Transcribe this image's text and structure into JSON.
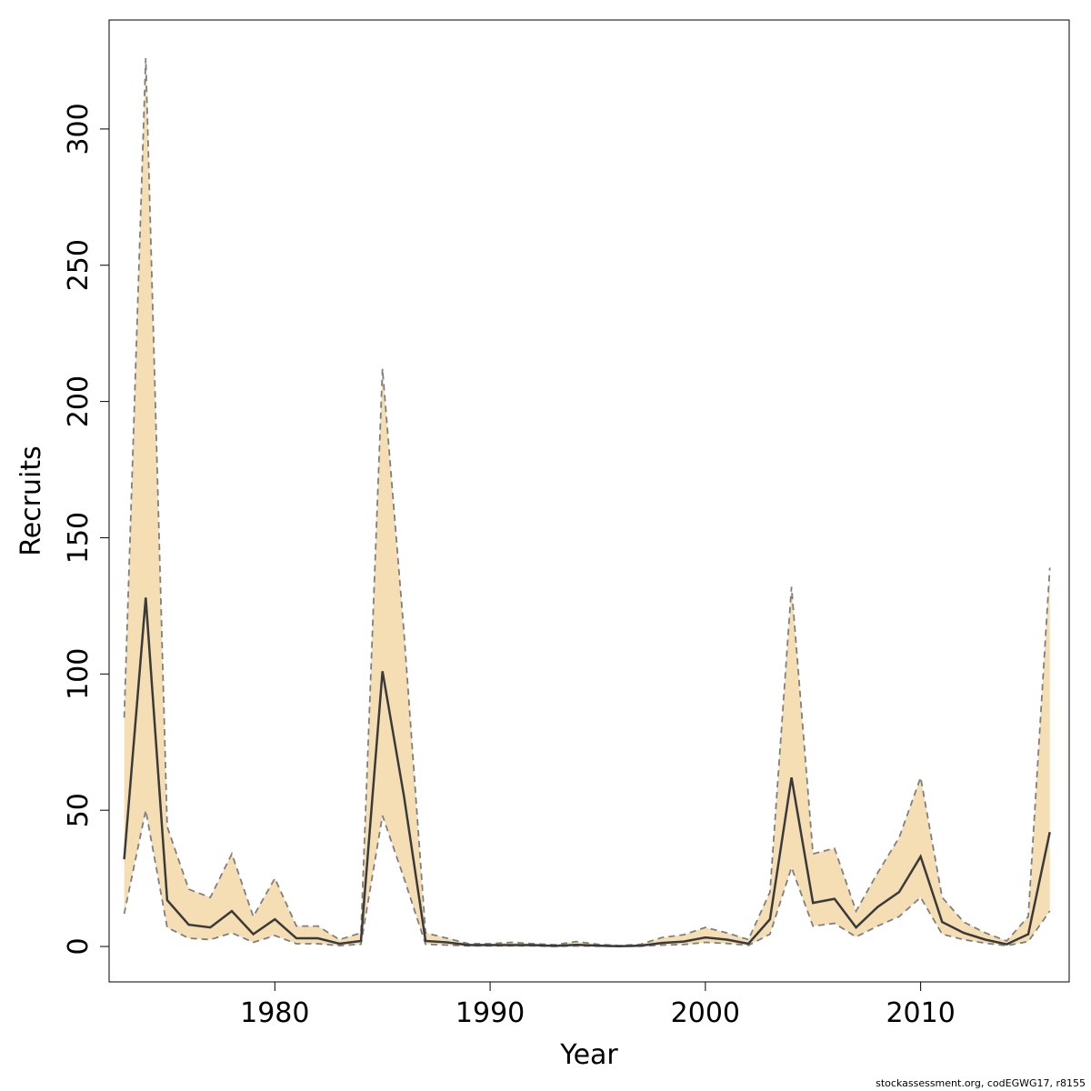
{
  "chart_data": {
    "type": "line",
    "xlabel": "Year",
    "ylabel": "Recruits",
    "xlim": [
      1972.3,
      2016.9
    ],
    "ylim": [
      -13,
      340
    ],
    "x_ticks": [
      1980,
      1990,
      2000,
      2010
    ],
    "x_tick_labels": [
      "1980",
      "1990",
      "2000",
      "2010"
    ],
    "y_ticks": [
      0,
      50,
      100,
      150,
      200,
      250,
      300
    ],
    "y_tick_labels": [
      "0",
      "50",
      "100",
      "150",
      "200",
      "250",
      "300"
    ],
    "grid": false,
    "colors": {
      "band": "#f5deb3",
      "line": "#3a3a3a",
      "bounds": "#7f7f7f"
    },
    "x": [
      1973,
      1974,
      1975,
      1976,
      1977,
      1978,
      1979,
      1980,
      1981,
      1982,
      1983,
      1984,
      1985,
      1986,
      1987,
      1988,
      1989,
      1990,
      1991,
      1992,
      1993,
      1994,
      1995,
      1996,
      1997,
      1998,
      1999,
      2000,
      2001,
      2002,
      2003,
      2004,
      2005,
      2006,
      2007,
      2008,
      2009,
      2010,
      2011,
      2012,
      2013,
      2014,
      2015,
      2016
    ],
    "series": [
      {
        "role": "estimate",
        "values": [
          32,
          128,
          17,
          8,
          7,
          13,
          4.5,
          10,
          3,
          3,
          1,
          2,
          101,
          55,
          2,
          1.5,
          0.5,
          0.5,
          0.5,
          0.5,
          0.2,
          0.6,
          0.3,
          0.1,
          0.3,
          1.3,
          1.8,
          3.3,
          2.5,
          1,
          10,
          62,
          16,
          17.5,
          7,
          14.5,
          20,
          33,
          9,
          5,
          2.5,
          0.8,
          4.5,
          42
        ]
      },
      {
        "role": "upper",
        "values": [
          84,
          326,
          44,
          21,
          18,
          34,
          11,
          25,
          7.5,
          7.5,
          2.5,
          5,
          212,
          115,
          5,
          3,
          1,
          1,
          1.5,
          1,
          0.6,
          1.8,
          0.8,
          0.3,
          0.8,
          3.3,
          4.3,
          7,
          5,
          2.5,
          20,
          132,
          34,
          36,
          13,
          27,
          40,
          62,
          18,
          9,
          5,
          2,
          11,
          139
        ]
      },
      {
        "role": "lower",
        "values": [
          12,
          50,
          7,
          3,
          2.5,
          5,
          1.5,
          4,
          1,
          1,
          0.3,
          0.8,
          48,
          25,
          0.8,
          0.5,
          0.2,
          0.2,
          0.2,
          0.2,
          0.05,
          0.2,
          0.1,
          0.03,
          0.1,
          0.5,
          0.7,
          1.5,
          1.1,
          0.4,
          4.5,
          29,
          7.5,
          8.5,
          3.5,
          7.5,
          11,
          18,
          4.5,
          2.5,
          1.2,
          0.3,
          1.8,
          13
        ]
      }
    ]
  },
  "footer": "stockassessment.org, codEGWG17, r8155"
}
